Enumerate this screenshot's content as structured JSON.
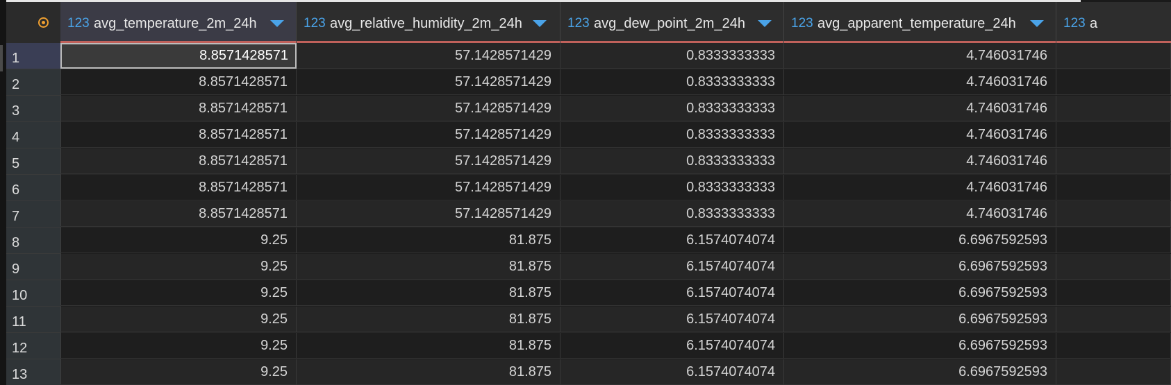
{
  "columns": [
    {
      "type_label": "123",
      "name": "avg_temperature_2m_24h"
    },
    {
      "type_label": "123",
      "name": "avg_relative_humidity_2m_24h"
    },
    {
      "type_label": "123",
      "name": "avg_dew_point_2m_24h"
    },
    {
      "type_label": "123",
      "name": "avg_apparent_temperature_24h"
    },
    {
      "type_label": "123",
      "name": "a"
    }
  ],
  "rows": [
    {
      "num": "1",
      "cells": [
        "8.8571428571",
        "57.1428571429",
        "0.8333333333",
        "4.746031746"
      ]
    },
    {
      "num": "2",
      "cells": [
        "8.8571428571",
        "57.1428571429",
        "0.8333333333",
        "4.746031746"
      ]
    },
    {
      "num": "3",
      "cells": [
        "8.8571428571",
        "57.1428571429",
        "0.8333333333",
        "4.746031746"
      ]
    },
    {
      "num": "4",
      "cells": [
        "8.8571428571",
        "57.1428571429",
        "0.8333333333",
        "4.746031746"
      ]
    },
    {
      "num": "5",
      "cells": [
        "8.8571428571",
        "57.1428571429",
        "0.8333333333",
        "4.746031746"
      ]
    },
    {
      "num": "6",
      "cells": [
        "8.8571428571",
        "57.1428571429",
        "0.8333333333",
        "4.746031746"
      ]
    },
    {
      "num": "7",
      "cells": [
        "8.8571428571",
        "57.1428571429",
        "0.8333333333",
        "4.746031746"
      ]
    },
    {
      "num": "8",
      "cells": [
        "9.25",
        "81.875",
        "6.1574074074",
        "6.6967592593"
      ]
    },
    {
      "num": "9",
      "cells": [
        "9.25",
        "81.875",
        "6.1574074074",
        "6.6967592593"
      ]
    },
    {
      "num": "10",
      "cells": [
        "9.25",
        "81.875",
        "6.1574074074",
        "6.6967592593"
      ]
    },
    {
      "num": "11",
      "cells": [
        "9.25",
        "81.875",
        "6.1574074074",
        "6.6967592593"
      ]
    },
    {
      "num": "12",
      "cells": [
        "9.25",
        "81.875",
        "6.1574074074",
        "6.6967592593"
      ]
    },
    {
      "num": "13",
      "cells": [
        "9.25",
        "81.875",
        "6.1574074074",
        "6.6967592593"
      ]
    }
  ],
  "colors": {
    "type_label": "#4aa3e8",
    "header_underline": "#c0615b",
    "corner_icon": "#f0a030"
  },
  "icons": {
    "corner": "record-circle-icon",
    "sort": "sort-down-triangle-icon"
  }
}
